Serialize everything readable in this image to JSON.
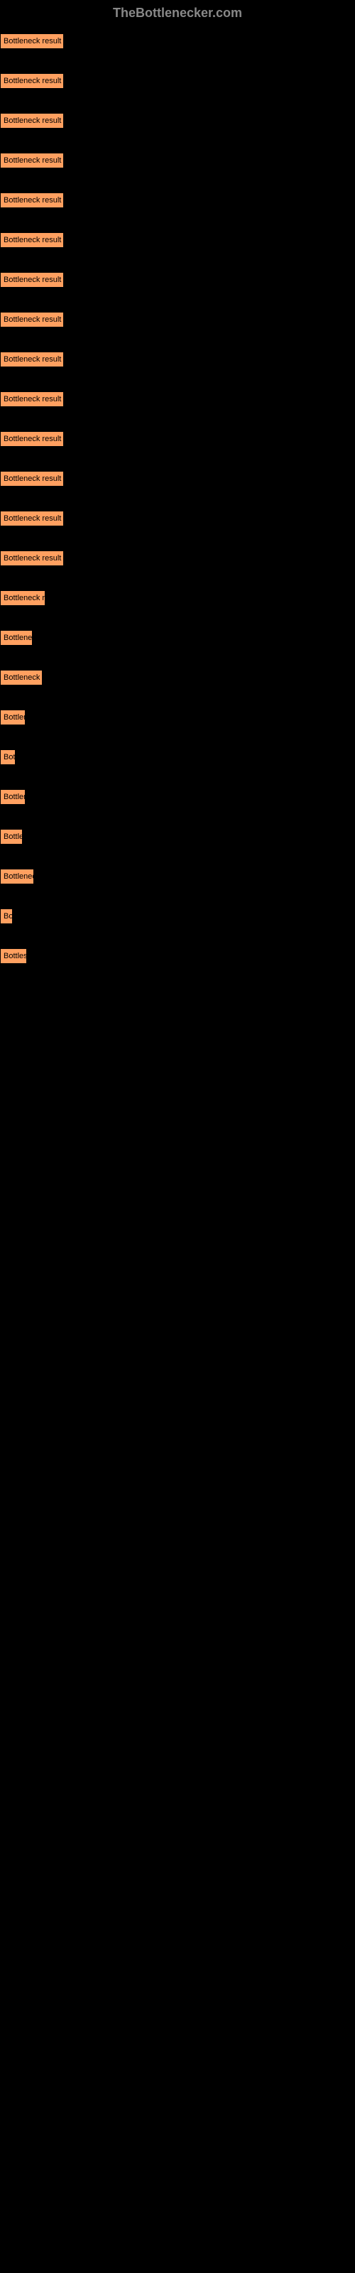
{
  "header": {
    "title": "TheBottlenecker.com"
  },
  "chart": {
    "type": "bar",
    "bar_color": "#ffa060",
    "background_color": "#000000",
    "text_color": "#000000",
    "header_color": "#888888",
    "bars": [
      {
        "label": "Bottleneck result",
        "width": 90
      },
      {
        "label": "Bottleneck result",
        "width": 90
      },
      {
        "label": "Bottleneck result",
        "width": 90
      },
      {
        "label": "Bottleneck result",
        "width": 90
      },
      {
        "label": "Bottleneck result",
        "width": 90
      },
      {
        "label": "Bottleneck result",
        "width": 90
      },
      {
        "label": "Bottleneck result",
        "width": 90
      },
      {
        "label": "Bottleneck result",
        "width": 90
      },
      {
        "label": "Bottleneck result",
        "width": 90
      },
      {
        "label": "Bottleneck result",
        "width": 90
      },
      {
        "label": "Bottleneck result",
        "width": 90
      },
      {
        "label": "Bottleneck result",
        "width": 90
      },
      {
        "label": "Bottleneck result",
        "width": 90
      },
      {
        "label": "Bottleneck result",
        "width": 90
      },
      {
        "label": "Bottleneck re",
        "width": 64
      },
      {
        "label": "Bottlenec",
        "width": 46
      },
      {
        "label": "Bottleneck r",
        "width": 60
      },
      {
        "label": "Bottlen",
        "width": 36
      },
      {
        "label": "Bot",
        "width": 22
      },
      {
        "label": "Bottlen",
        "width": 36
      },
      {
        "label": "Bottle",
        "width": 32
      },
      {
        "label": "Bottlenec",
        "width": 48
      },
      {
        "label": "Bo",
        "width": 18
      },
      {
        "label": "Bottles",
        "width": 38
      }
    ]
  }
}
